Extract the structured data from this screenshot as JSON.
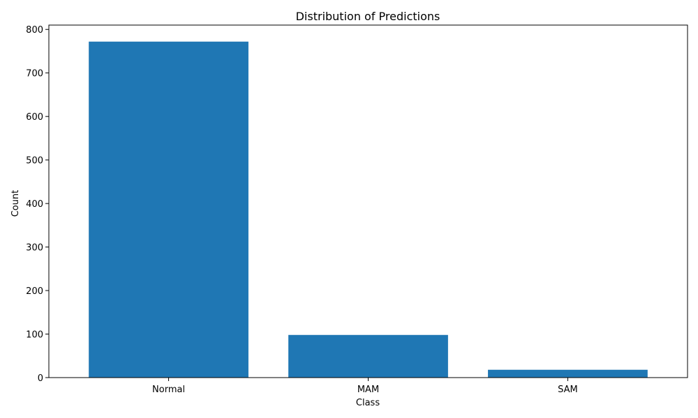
{
  "chart_data": {
    "type": "bar",
    "title": "Distribution of Predictions",
    "xlabel": "Class",
    "ylabel": "Count",
    "categories": [
      "Normal",
      "MAM",
      "SAM"
    ],
    "values": [
      772,
      98,
      18
    ],
    "ylim": [
      0,
      810
    ],
    "yticks": [
      0,
      100,
      200,
      300,
      400,
      500,
      600,
      700,
      800
    ],
    "bar_color": "#1f77b4",
    "grid": false,
    "legend": "none"
  }
}
